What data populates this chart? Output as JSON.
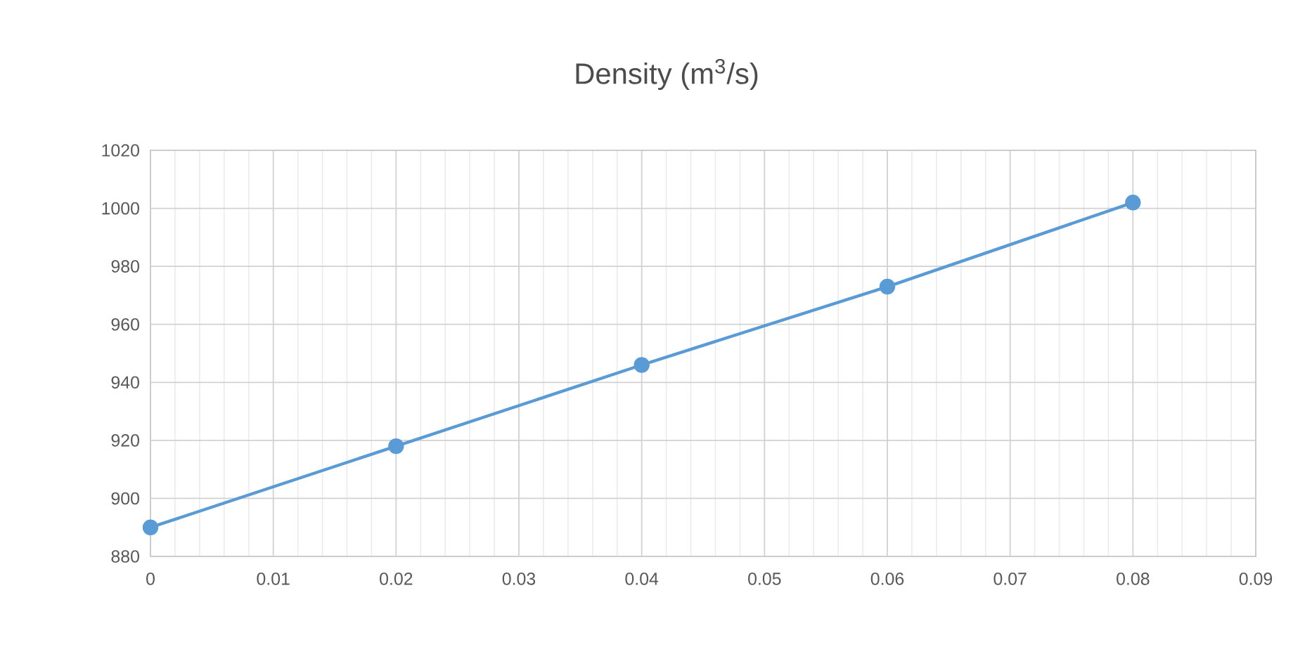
{
  "chart_data": {
    "type": "line",
    "title": "Density (m$^{3}$/s)",
    "x": [
      0,
      0.02,
      0.04,
      0.06,
      0.08
    ],
    "series": [
      {
        "color": "#5b9bd5",
        "values": [
          890,
          918,
          946,
          973,
          1002
        ]
      }
    ],
    "xlim": [
      0,
      0.09
    ],
    "xticks": [
      0,
      0.01,
      0.02,
      0.03,
      0.04,
      0.05,
      0.06,
      0.07,
      0.08,
      0.09
    ],
    "ylim": [
      880,
      1020
    ],
    "yticks": [
      880,
      900,
      920,
      940,
      960,
      980,
      1000,
      1020
    ],
    "grid": true,
    "marker": "circle",
    "line_style": "solid"
  }
}
